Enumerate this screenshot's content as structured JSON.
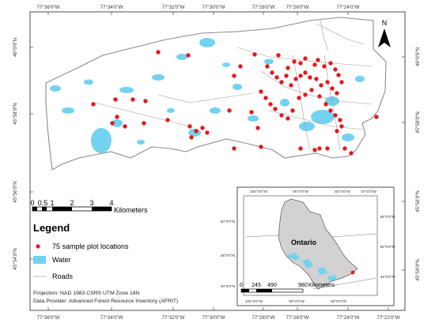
{
  "graticule": {
    "top_lon": [
      "77°36'0\"W",
      "77°34'0\"W",
      "77°32'0\"W",
      "77°30'0\"W",
      "77°28'0\"W",
      "77°26'0\"W",
      "77°24'0\"W"
    ],
    "bottom_lon": [
      "77°36'0\"W",
      "77°34'0\"W",
      "77°32'0\"W",
      "77°30'0\"W",
      "77°28'0\"W",
      "77°26'0\"W",
      "77°24'0\"W",
      "77°22'0\"W"
    ],
    "left_lat": [
      "46°0'0\"N",
      "45°58'0\"N",
      "45°56'0\"N",
      "45°54'0\"N"
    ],
    "right_lat": [
      "46°0'0\"N",
      "45°58'0\"N",
      "45°56'0\"N",
      "45°54'0\"N"
    ]
  },
  "north_arrow": {
    "label": "N"
  },
  "scale_bar": {
    "ticks": [
      "0",
      "0.5",
      "1",
      "2",
      "3",
      "4"
    ],
    "unit": "Kilometers"
  },
  "legend": {
    "title": "Legend",
    "items": [
      {
        "label": "75 sample plot locations",
        "symbol": "red-dot"
      },
      {
        "label": "Water",
        "symbol": "water-patch"
      },
      {
        "label": "Roads",
        "symbol": "road-line"
      }
    ]
  },
  "credits": {
    "projection": "Projection: NAD 1983 CSRS UTM Zone 18N",
    "provider": "Data Provider: Advanced Forest Resource Inventory (AFRIT)"
  },
  "inset": {
    "top_lon": [
      "100°0'0\"W",
      "90°0'0\"W",
      "80°0'0\"W",
      "70°0'0\"W"
    ],
    "bottom_lon": [
      "100°0'0\"W",
      "90°0'0\"W",
      "80°0'0\"W"
    ],
    "left_lat": [
      "50°0'0\"N",
      "45°0'0\"N",
      "40°0'0\"N"
    ],
    "right_lat": [
      "55°0'0\"N",
      "50°0'0\"N",
      "45°0'0\"N"
    ],
    "region_label": "Ontario",
    "scale_ticks": [
      "0",
      "245",
      "490",
      "980"
    ],
    "scale_unit": "Kilometers"
  },
  "colors": {
    "water": "#73d2f0",
    "plot": "#e31a1c",
    "roads": "#9a9a9a",
    "boundary": "#8c8c8c",
    "ontario": "#d2d2d2"
  }
}
